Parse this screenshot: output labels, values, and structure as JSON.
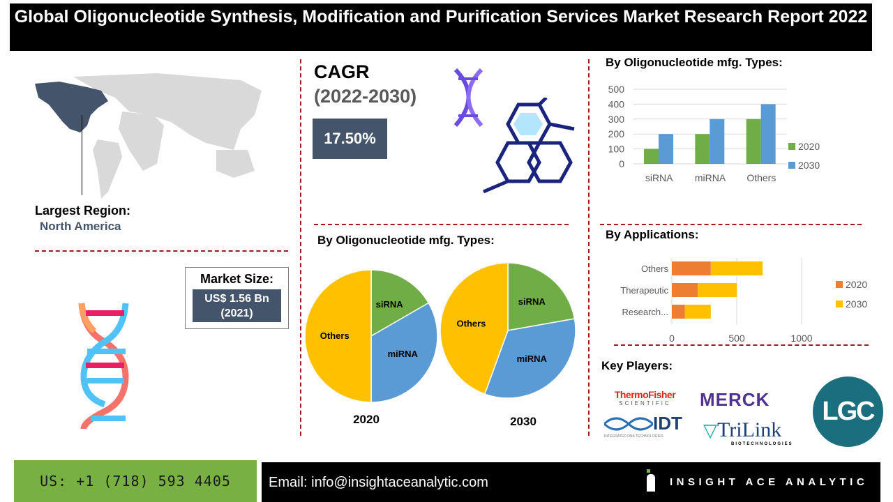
{
  "title": "Global Oligonucleotide Synthesis, Modification and Purification Services Market  Research Report 2022",
  "region": {
    "label": "Largest Region:",
    "value": "North America",
    "highlight_color": "#44546a"
  },
  "market_size": {
    "label": "Market Size:",
    "value": "US$ 1.56 Bn",
    "year": "(2021)"
  },
  "cagr": {
    "label": "CAGR",
    "period": "(2022-2030)",
    "value": "17.50%"
  },
  "sections": {
    "types_pie": "By Oligonucleotide mfg. Types:",
    "types_bar": "By Oligonucleotide mfg. Types:",
    "applications": "By Applications:",
    "key_players": "Key Players:"
  },
  "key_players": [
    "ThermoFisher Scientific",
    "Merck",
    "LGC",
    "IDT Integrated DNA Technologies",
    "TriLink Biotechnologies"
  ],
  "footer": {
    "phone": "US: +1 (718) 593 4405",
    "email": "Email: info@insightaceanalytic.com",
    "brand": "INSIGHT ACE ANALYTIC"
  },
  "chart_data": [
    {
      "type": "pie",
      "title": "2020",
      "labels": [
        "siRNA",
        "miRNA",
        "Others"
      ],
      "values": [
        100,
        200,
        300
      ],
      "colors": [
        "#70ad47",
        "#5b9bd5",
        "#ffc000"
      ]
    },
    {
      "type": "pie",
      "title": "2030",
      "labels": [
        "siRNA",
        "miRNA",
        "Others"
      ],
      "values": [
        200,
        300,
        400
      ],
      "colors": [
        "#70ad47",
        "#5b9bd5",
        "#ffc000"
      ]
    },
    {
      "type": "bar",
      "categories": [
        "siRNA",
        "miRNA",
        "Others"
      ],
      "series": [
        {
          "name": "2020",
          "values": [
            100,
            200,
            300
          ],
          "color": "#70ad47"
        },
        {
          "name": "2030",
          "values": [
            200,
            300,
            400
          ],
          "color": "#5b9bd5"
        }
      ],
      "ylim": [
        0,
        500
      ],
      "yticks": [
        "0",
        "100",
        "200",
        "300",
        "400",
        "500"
      ],
      "grid": true,
      "legend": "right"
    },
    {
      "type": "bar",
      "orientation": "horizontal",
      "stacked": true,
      "categories": [
        "Others",
        "Therapeutic",
        "Research..."
      ],
      "series": [
        {
          "name": "2020",
          "values": [
            300,
            200,
            100
          ],
          "color": "#ed7d31"
        },
        {
          "name": "2030",
          "values": [
            400,
            300,
            200
          ],
          "color": "#ffc000"
        }
      ],
      "xlim": [
        0,
        1200
      ],
      "xticks": [
        "0",
        "500",
        "1000"
      ],
      "grid": true,
      "legend": "right"
    }
  ]
}
